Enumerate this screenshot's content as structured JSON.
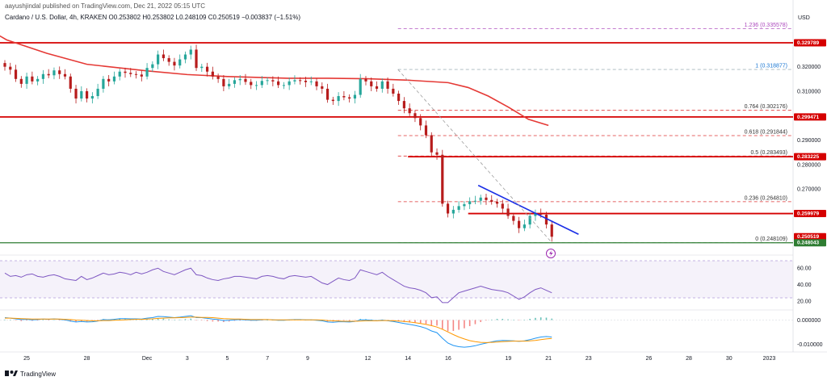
{
  "header": {
    "publisher": "aayushjindal published on TradingView.com, Dec 21, 2022 05:15 UTC",
    "symbol_line": "Cardano / U.S. Dollar, 4h, KRAKEN  O0.253802  H0.253802  L0.248109  C0.250519  −0.003837 (−1.51%)",
    "currency": "USD"
  },
  "footer": {
    "brand": "TradingView",
    "brand_icon": "tradingview-logo-icon"
  },
  "colors": {
    "candle_up": "#26a69a",
    "candle_down": "#b71c1c",
    "moving_average": "#e53935",
    "resistance": "#d50000",
    "support": "#2e7d32",
    "trendline": "#1a2ee6",
    "fib_top": "#ab47bc",
    "rsi": "#7e57c2",
    "macd": "#2196f3",
    "signal": "#ff9800"
  },
  "chart_data": {
    "type": "candlestick",
    "timeframe": "4h",
    "price_axis": {
      "range": [
        0.243,
        0.342
      ],
      "ticks": [
        "0.320000",
        "0.310000",
        "0.290000",
        "0.280000",
        "0.270000"
      ]
    },
    "time_axis": {
      "ticks": [
        "25",
        "28",
        "Dec",
        "3",
        "5",
        "7",
        "9",
        "12",
        "14",
        "16",
        "19",
        "21",
        "23",
        "26",
        "28",
        "30",
        "2023"
      ]
    },
    "price_tags": [
      {
        "value": "0.329789",
        "color": "#d50000"
      },
      {
        "value": "0.299471",
        "color": "#d50000"
      },
      {
        "value": "0.283225",
        "color": "#d50000"
      },
      {
        "value": "0.259979",
        "color": "#d50000"
      },
      {
        "value": "0.250519",
        "color": "#d50000",
        "countdown": "02:43:57"
      },
      {
        "value": "0.248043",
        "color": "#2e7d32"
      }
    ],
    "horizontal_levels": [
      {
        "price": 0.329789,
        "kind": "resistance",
        "from_date": "Nov 23"
      },
      {
        "price": 0.299471,
        "kind": "resistance",
        "from_date": "Nov 23"
      },
      {
        "price": 0.283225,
        "kind": "resistance",
        "from_date": "Dec 14"
      },
      {
        "price": 0.259979,
        "kind": "resistance",
        "from_date": "Dec 17"
      },
      {
        "price": 0.248043,
        "kind": "support",
        "from_date": "Nov 23"
      }
    ],
    "fibonacci": [
      {
        "label": "1.236 (0.335578)",
        "ratio": 1.236,
        "price": 0.335578
      },
      {
        "label": "1 (0.318877)",
        "ratio": 1,
        "price": 0.318877
      },
      {
        "label": "0.764 (0.302176)",
        "ratio": 0.764,
        "price": 0.302176
      },
      {
        "label": "0.618 (0.291844)",
        "ratio": 0.618,
        "price": 0.291844
      },
      {
        "label": "0.5 (0.283493)",
        "ratio": 0.5,
        "price": 0.283493
      },
      {
        "label": "0.236 (0.264810)",
        "ratio": 0.236,
        "price": 0.26481
      },
      {
        "label": "0 (0.248109)",
        "ratio": 0,
        "price": 0.248109
      }
    ],
    "fib_start": "Dec 13",
    "trendline": {
      "from": [
        "Dec 17 12:00",
        0.2715
      ],
      "to": [
        "Dec 22 12:00",
        0.2515
      ]
    },
    "moving_average_points": [
      [
        "Nov 22",
        0.3405
      ],
      [
        "Nov 24",
        0.331
      ],
      [
        "Nov 26",
        0.3255
      ],
      [
        "Nov 28",
        0.321
      ],
      [
        "Dec 1",
        0.3183
      ],
      [
        "Dec 3",
        0.3168
      ],
      [
        "Dec 5",
        0.316
      ],
      [
        "Dec 8",
        0.3153
      ],
      [
        "Dec 10",
        0.3153
      ],
      [
        "Dec 12",
        0.3151
      ],
      [
        "Dec 14",
        0.3145
      ],
      [
        "Dec 16",
        0.3135
      ],
      [
        "Dec 17",
        0.3115
      ],
      [
        "Dec 18",
        0.308
      ],
      [
        "Dec 19",
        0.3035
      ],
      [
        "Dec 20",
        0.2985
      ],
      [
        "Dec 21",
        0.296
      ]
    ],
    "candles_close": [
      0.32,
      0.3188,
      0.315,
      0.313,
      0.316,
      0.314,
      0.315,
      0.317,
      0.3165,
      0.3185,
      0.317,
      0.316,
      0.311,
      0.307,
      0.31,
      0.307,
      0.308,
      0.311,
      0.315,
      0.314,
      0.316,
      0.318,
      0.3175,
      0.317,
      0.3168,
      0.316,
      0.3195,
      0.321,
      0.325,
      0.3235,
      0.322,
      0.3205,
      0.323,
      0.325,
      0.327,
      0.3195,
      0.32,
      0.318,
      0.316,
      0.315,
      0.312,
      0.313,
      0.3145,
      0.315,
      0.3138,
      0.3125,
      0.3125,
      0.3142,
      0.3145,
      0.314,
      0.3125,
      0.3125,
      0.314,
      0.3145,
      0.3143,
      0.3137,
      0.314,
      0.312,
      0.311,
      0.3065,
      0.306,
      0.308,
      0.3075,
      0.307,
      0.3085,
      0.315,
      0.314,
      0.312,
      0.311,
      0.314,
      0.311,
      0.309,
      0.306,
      0.303,
      0.301,
      0.299,
      0.296,
      0.292,
      0.285,
      0.284,
      0.264,
      0.26,
      0.2615,
      0.263,
      0.2638,
      0.265,
      0.2652,
      0.2665,
      0.2655,
      0.2648,
      0.264,
      0.262,
      0.259,
      0.257,
      0.254,
      0.2555,
      0.259,
      0.26,
      0.2595,
      0.2555,
      0.2505
    ],
    "rsi": {
      "levels": [
        70,
        30
      ],
      "ticks": [
        "60.00",
        "40.00",
        "20.00"
      ],
      "range": [
        10,
        75
      ],
      "values": [
        54,
        50,
        51,
        49,
        52,
        53,
        50,
        49,
        51,
        52,
        50,
        47,
        46,
        45,
        50,
        46,
        48,
        51,
        54,
        52,
        53,
        55,
        54,
        52,
        55,
        53,
        55,
        58,
        60,
        56,
        54,
        52,
        55,
        58,
        60,
        52,
        51,
        48,
        46,
        45,
        47,
        48,
        50,
        50,
        49,
        48,
        47,
        50,
        51,
        50,
        48,
        47,
        50,
        51,
        50,
        49,
        50,
        46,
        42,
        40,
        44,
        48,
        46,
        45,
        48,
        58,
        56,
        54,
        52,
        55,
        50,
        46,
        42,
        38,
        36,
        35,
        33,
        30,
        24,
        25,
        18,
        18,
        24,
        30,
        32,
        34,
        36,
        38,
        36,
        34,
        33,
        32,
        30,
        26,
        22,
        25,
        30,
        34,
        36,
        33,
        30
      ]
    },
    "macd": {
      "ticks": [
        "0.000000",
        "-0.010000"
      ],
      "range": [
        -0.0125,
        0.0035
      ],
      "macd_values": [
        0.001,
        0.0008,
        0.0005,
        0.0002,
        0.0003,
        0.0001,
        0.0002,
        0.0004,
        0.0003,
        0.0005,
        0.0003,
        0.0001,
        -0.0004,
        -0.0008,
        -0.0006,
        -0.0008,
        -0.0007,
        -0.0004,
        0.0002,
        0.0001,
        0.0003,
        0.0006,
        0.0006,
        0.0005,
        0.0005,
        0.0004,
        0.0008,
        0.001,
        0.0015,
        0.0014,
        0.0012,
        0.001,
        0.0012,
        0.0015,
        0.0018,
        0.001,
        0.001,
        0.0007,
        0.0004,
        0.0002,
        -0.0002,
        -0.0001,
        0.0001,
        0.0002,
        0.0001,
        -0.0001,
        -0.0001,
        0.0001,
        0.0002,
        0.0001,
        -0.0001,
        -0.0001,
        0.0001,
        0.0002,
        0.0002,
        0.0001,
        0.0001,
        -0.0001,
        -0.0003,
        -0.0008,
        -0.0009,
        -0.0007,
        -0.0007,
        -0.0008,
        -0.0006,
        0.0001,
        0.0001,
        -0.0001,
        -0.0003,
        0.0,
        -0.0003,
        -0.0006,
        -0.001,
        -0.0014,
        -0.0018,
        -0.0022,
        -0.0027,
        -0.0034,
        -0.0045,
        -0.0052,
        -0.0075,
        -0.0095,
        -0.0105,
        -0.011,
        -0.0112,
        -0.011,
        -0.0106,
        -0.01,
        -0.0095,
        -0.009,
        -0.0086,
        -0.0084,
        -0.0085,
        -0.0086,
        -0.0088,
        -0.0086,
        -0.0081,
        -0.0075,
        -0.007,
        -0.0068,
        -0.007
      ],
      "signal_values": [
        0.0008,
        0.0008,
        0.0007,
        0.0006,
        0.0005,
        0.0004,
        0.0004,
        0.0004,
        0.0004,
        0.0004,
        0.0004,
        0.0003,
        0.0002,
        0.0,
        -0.0001,
        -0.0002,
        -0.0003,
        -0.0003,
        -0.0002,
        -0.0002,
        -0.0001,
        0.0,
        0.0001,
        0.0002,
        0.0003,
        0.0003,
        0.0004,
        0.0005,
        0.0007,
        0.0008,
        0.0009,
        0.0009,
        0.001,
        0.0011,
        0.0012,
        0.0012,
        0.0011,
        0.0011,
        0.001,
        0.0008,
        0.0006,
        0.0005,
        0.0004,
        0.0004,
        0.0003,
        0.0002,
        0.0002,
        0.0002,
        0.0002,
        0.0001,
        0.0001,
        0.0001,
        0.0001,
        0.0001,
        0.0001,
        0.0001,
        0.0001,
        0.0001,
        0.0,
        -0.0002,
        -0.0003,
        -0.0004,
        -0.0005,
        -0.0005,
        -0.0005,
        -0.0004,
        -0.0003,
        -0.0003,
        -0.0003,
        -0.0002,
        -0.0002,
        -0.0003,
        -0.0004,
        -0.0006,
        -0.0008,
        -0.0011,
        -0.0014,
        -0.0018,
        -0.0023,
        -0.0029,
        -0.0038,
        -0.0049,
        -0.006,
        -0.007,
        -0.0078,
        -0.0085,
        -0.0089,
        -0.0092,
        -0.0093,
        -0.0092,
        -0.0091,
        -0.0089,
        -0.0088,
        -0.0087,
        -0.0087,
        -0.0087,
        -0.0086,
        -0.0084,
        -0.0081,
        -0.0078,
        -0.0076
      ]
    }
  }
}
